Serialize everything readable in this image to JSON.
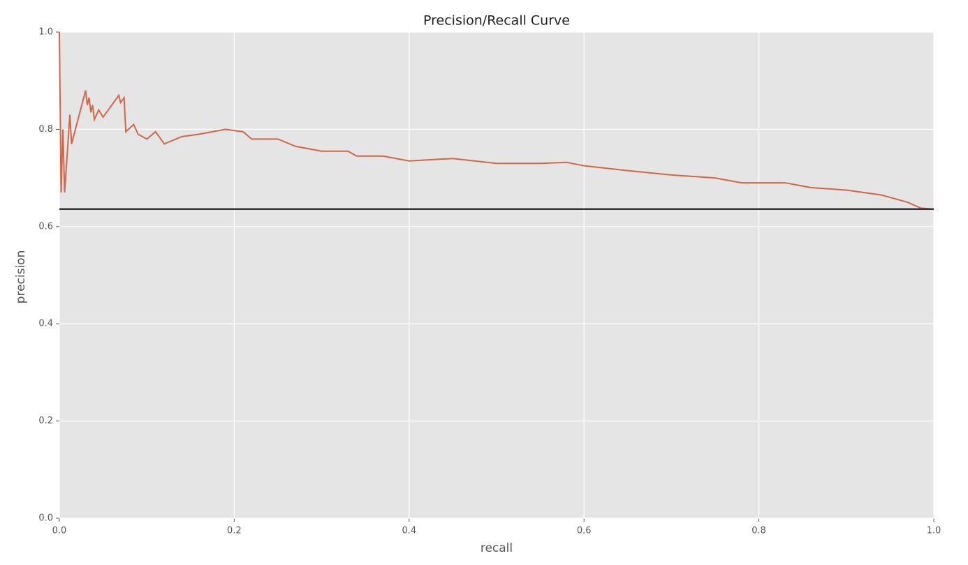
{
  "chart_data": {
    "type": "line",
    "title": "Precision/Recall Curve",
    "x_label": "recall",
    "y_label": "precision",
    "series": [
      {
        "color": "#d0674a",
        "x": [
          0.0,
          0.002,
          0.004,
          0.006,
          0.012,
          0.014,
          0.03,
          0.032,
          0.034,
          0.036,
          0.038,
          0.04,
          0.045,
          0.05,
          0.068,
          0.07,
          0.074,
          0.076,
          0.085,
          0.09,
          0.1,
          0.11,
          0.12,
          0.14,
          0.16,
          0.19,
          0.21,
          0.22,
          0.25,
          0.27,
          0.3,
          0.33,
          0.34,
          0.37,
          0.4,
          0.45,
          0.5,
          0.55,
          0.58,
          0.6,
          0.65,
          0.7,
          0.75,
          0.78,
          0.83,
          0.86,
          0.9,
          0.94,
          0.97,
          0.985,
          1.0
        ],
        "values": [
          1.0,
          0.67,
          0.8,
          0.67,
          0.83,
          0.77,
          0.88,
          0.85,
          0.865,
          0.835,
          0.85,
          0.82,
          0.84,
          0.825,
          0.87,
          0.855,
          0.865,
          0.795,
          0.81,
          0.79,
          0.78,
          0.795,
          0.77,
          0.785,
          0.79,
          0.8,
          0.795,
          0.78,
          0.78,
          0.765,
          0.755,
          0.755,
          0.745,
          0.745,
          0.735,
          0.74,
          0.73,
          0.73,
          0.732,
          0.725,
          0.715,
          0.706,
          0.7,
          0.69,
          0.69,
          0.68,
          0.675,
          0.665,
          0.65,
          0.638,
          0.636
        ]
      },
      {
        "color": "#333333",
        "x": [
          0.0,
          1.0
        ],
        "values": [
          0.636,
          0.636
        ]
      }
    ],
    "xlim": [
      0,
      1
    ],
    "ylim": [
      0,
      1
    ],
    "xticks": [
      {
        "value": 0,
        "label": "0.0"
      },
      0.2,
      0.4,
      0.6,
      0.8,
      {
        "value": 1,
        "label": "1.0"
      }
    ],
    "yticks": [
      {
        "value": 0,
        "label": "0.0"
      },
      0.2,
      0.4,
      0.6,
      0.8,
      {
        "value": 1,
        "label": "1.0"
      }
    ],
    "grid": true
  }
}
